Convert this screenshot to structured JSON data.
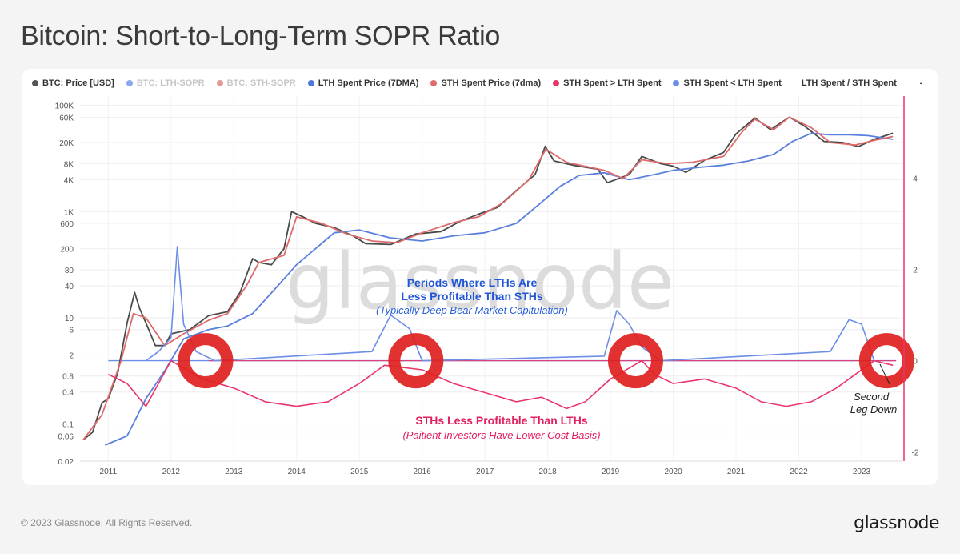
{
  "header": {
    "title": "Bitcoin: Short-to-Long-Term SOPR Ratio"
  },
  "legend": [
    {
      "label": "BTC: Price [USD]",
      "color": "#555555",
      "muted": false
    },
    {
      "label": "BTC: LTH-SOPR",
      "color": "#8aa8ee",
      "muted": true
    },
    {
      "label": "BTC: STH-SOPR",
      "color": "#e59a9a",
      "muted": true
    },
    {
      "label": "LTH Spent Price (7DMA)",
      "color": "#4f78dc",
      "muted": false
    },
    {
      "label": "STH Spent Price (7dma)",
      "color": "#e06d6d",
      "muted": false
    },
    {
      "label": "STH Spent > LTH Spent",
      "color": "#e8356a",
      "muted": false
    },
    {
      "label": "STH Spent < LTH Spent",
      "color": "#6d8ee6",
      "muted": false
    },
    {
      "label": "LTH Spent / STH Spent",
      "color": "",
      "muted": false
    },
    {
      "label": "-",
      "color": "",
      "muted": false
    }
  ],
  "watermark": "glassnode",
  "annotations": {
    "upper_title_1": "Periods Where LTHs Are",
    "upper_title_2": "Less Profitable Than STHs",
    "upper_sub": "(Typically Deep Bear Market Capitulation)",
    "lower_title": "STHs Less Profitable Than LTHs",
    "lower_sub": "(Paitient Investors Have Lower Cost Basis)",
    "second_1": "Second",
    "second_2": "Leg Down"
  },
  "chart_data": {
    "type": "line",
    "x_ticks": [
      "2011",
      "2012",
      "2013",
      "2014",
      "2015",
      "2016",
      "2017",
      "2018",
      "2019",
      "2020",
      "2021",
      "2022",
      "2023"
    ],
    "y_left_ticks": [
      "100K",
      "60K",
      "20K",
      "8K",
      "4K",
      "1K",
      "600",
      "200",
      "80",
      "40",
      "10",
      "6",
      "2",
      "0.8",
      "0.4",
      "0.1",
      "0.06",
      "0.02"
    ],
    "y_left_scale": "log",
    "y_right_ticks": [
      "4",
      "2",
      "0",
      "-2"
    ],
    "xlim": [
      2010.55,
      2023.65
    ],
    "ylim_left": [
      0.02,
      150000
    ],
    "ylim_right": [
      -2.2,
      5.8
    ],
    "grid": true,
    "colors": {
      "price": "#4a4a4a",
      "lth_spent_price": "#5b7fdd",
      "sth_spent_price": "#dd6b6b",
      "ratio_high": "#e8356a",
      "ratio_low": "#6d8ee6",
      "circle": "#e02020"
    },
    "series": [
      {
        "name": "BTC: Price [USD]",
        "x": [
          2010.6,
          2010.75,
          2010.9,
          2011.0,
          2011.15,
          2011.3,
          2011.42,
          2011.5,
          2011.6,
          2011.75,
          2011.9,
          2012.0,
          2012.3,
          2012.6,
          2012.9,
          2013.1,
          2013.3,
          2013.4,
          2013.6,
          2013.8,
          2013.92,
          2014.1,
          2014.3,
          2014.6,
          2014.9,
          2015.1,
          2015.5,
          2015.9,
          2016.3,
          2016.6,
          2016.9,
          2017.2,
          2017.5,
          2017.8,
          2017.96,
          2018.1,
          2018.4,
          2018.8,
          2018.95,
          2019.3,
          2019.5,
          2019.8,
          2020.0,
          2020.2,
          2020.5,
          2020.8,
          2021.0,
          2021.3,
          2021.55,
          2021.85,
          2022.1,
          2022.4,
          2022.7,
          2022.95,
          2023.2,
          2023.5
        ],
        "y": [
          0.05,
          0.07,
          0.25,
          0.3,
          0.9,
          8,
          30,
          15,
          8,
          3,
          3,
          5,
          6,
          11,
          13,
          30,
          130,
          110,
          100,
          200,
          1000,
          800,
          600,
          500,
          350,
          250,
          240,
          380,
          420,
          650,
          900,
          1200,
          2500,
          5000,
          17000,
          9000,
          7500,
          6300,
          3500,
          5000,
          11000,
          8000,
          7200,
          5500,
          9300,
          13000,
          29000,
          58000,
          35000,
          60000,
          40000,
          21000,
          20000,
          16800,
          23000,
          30000
        ]
      },
      {
        "name": "LTH Spent Price (7DMA)",
        "x": [
          2010.95,
          2011.3,
          2011.6,
          2011.9,
          2012.2,
          2012.6,
          2012.9,
          2013.3,
          2013.7,
          2014.0,
          2014.3,
          2014.6,
          2015.0,
          2015.5,
          2016.0,
          2016.5,
          2017.0,
          2017.5,
          2017.9,
          2018.2,
          2018.5,
          2018.9,
          2019.3,
          2019.7,
          2020.0,
          2020.4,
          2020.8,
          2021.2,
          2021.6,
          2021.9,
          2022.2,
          2022.5,
          2022.8,
          2023.1,
          2023.5
        ],
        "y": [
          0.04,
          0.06,
          0.3,
          1,
          4,
          6,
          7,
          12,
          40,
          100,
          200,
          400,
          450,
          320,
          280,
          350,
          400,
          600,
          1500,
          3000,
          4800,
          5400,
          4000,
          5000,
          6000,
          6800,
          7500,
          9000,
          12000,
          21000,
          30000,
          28000,
          28000,
          27000,
          23000
        ]
      },
      {
        "name": "STH Spent Price (7dma)",
        "x": [
          2010.6,
          2010.9,
          2011.2,
          2011.4,
          2011.6,
          2011.9,
          2012.2,
          2012.6,
          2012.9,
          2013.2,
          2013.4,
          2013.8,
          2014.0,
          2014.4,
          2014.8,
          2015.2,
          2015.6,
          2016.0,
          2016.5,
          2016.9,
          2017.3,
          2017.7,
          2017.97,
          2018.3,
          2018.9,
          2019.2,
          2019.5,
          2019.9,
          2020.3,
          2020.8,
          2021.1,
          2021.3,
          2021.6,
          2021.85,
          2022.2,
          2022.5,
          2022.9,
          2023.2,
          2023.5
        ],
        "y": [
          0.05,
          0.15,
          1.5,
          12,
          10,
          3,
          5,
          9,
          12,
          40,
          110,
          150,
          800,
          600,
          380,
          280,
          260,
          400,
          620,
          800,
          1500,
          4000,
          15000,
          8500,
          6000,
          4200,
          9500,
          8000,
          8500,
          11000,
          32000,
          55000,
          35000,
          60000,
          38000,
          20000,
          18000,
          22000,
          26000
        ]
      },
      {
        "name": "STH Spent > LTH Spent",
        "x": [
          2011.0,
          2011.3,
          2011.6,
          2012.0,
          2012.5,
          2013.0,
          2013.5,
          2014.0,
          2014.5,
          2015.0,
          2015.4,
          2016.0,
          2016.5,
          2017.0,
          2017.5,
          2017.9,
          2018.3,
          2018.6,
          2019.0,
          2019.5,
          2019.7,
          2020.0,
          2020.5,
          2021.0,
          2021.4,
          2021.8,
          2022.2,
          2022.6,
          2022.9,
          2023.2,
          2023.5
        ],
        "y": [
          -0.3,
          -0.5,
          -1.0,
          0.0,
          -0.4,
          -0.6,
          -0.9,
          -1.0,
          -0.9,
          -0.5,
          -0.1,
          -0.2,
          -0.5,
          -0.7,
          -0.9,
          -0.8,
          -1.05,
          -0.9,
          -0.4,
          0.0,
          -0.3,
          -0.5,
          -0.4,
          -0.6,
          -0.9,
          -1.0,
          -0.9,
          -0.6,
          -0.3,
          0.0,
          -0.1
        ]
      },
      {
        "name": "STH Spent < LTH Spent",
        "x": [
          2011.6,
          2011.8,
          2012.0,
          2012.1,
          2012.2,
          2012.4,
          2012.7,
          2015.2,
          2015.5,
          2015.8,
          2016.0,
          2018.9,
          2019.1,
          2019.3,
          2019.5,
          2019.8,
          2022.5,
          2022.8,
          2023.0,
          2023.2
        ],
        "y": [
          0.0,
          0.2,
          0.5,
          2.5,
          0.8,
          0.2,
          0.0,
          0.2,
          1.0,
          0.7,
          0.0,
          0.1,
          1.1,
          0.8,
          0.3,
          0.0,
          0.2,
          0.9,
          0.8,
          0.0
        ]
      }
    ],
    "highlight_circles_x": [
      2012.55,
      2015.9,
      2019.4,
      2023.4
    ]
  },
  "footer": {
    "copyright": "© 2023 Glassnode. All Rights Reserved.",
    "logo": "glassnode"
  }
}
